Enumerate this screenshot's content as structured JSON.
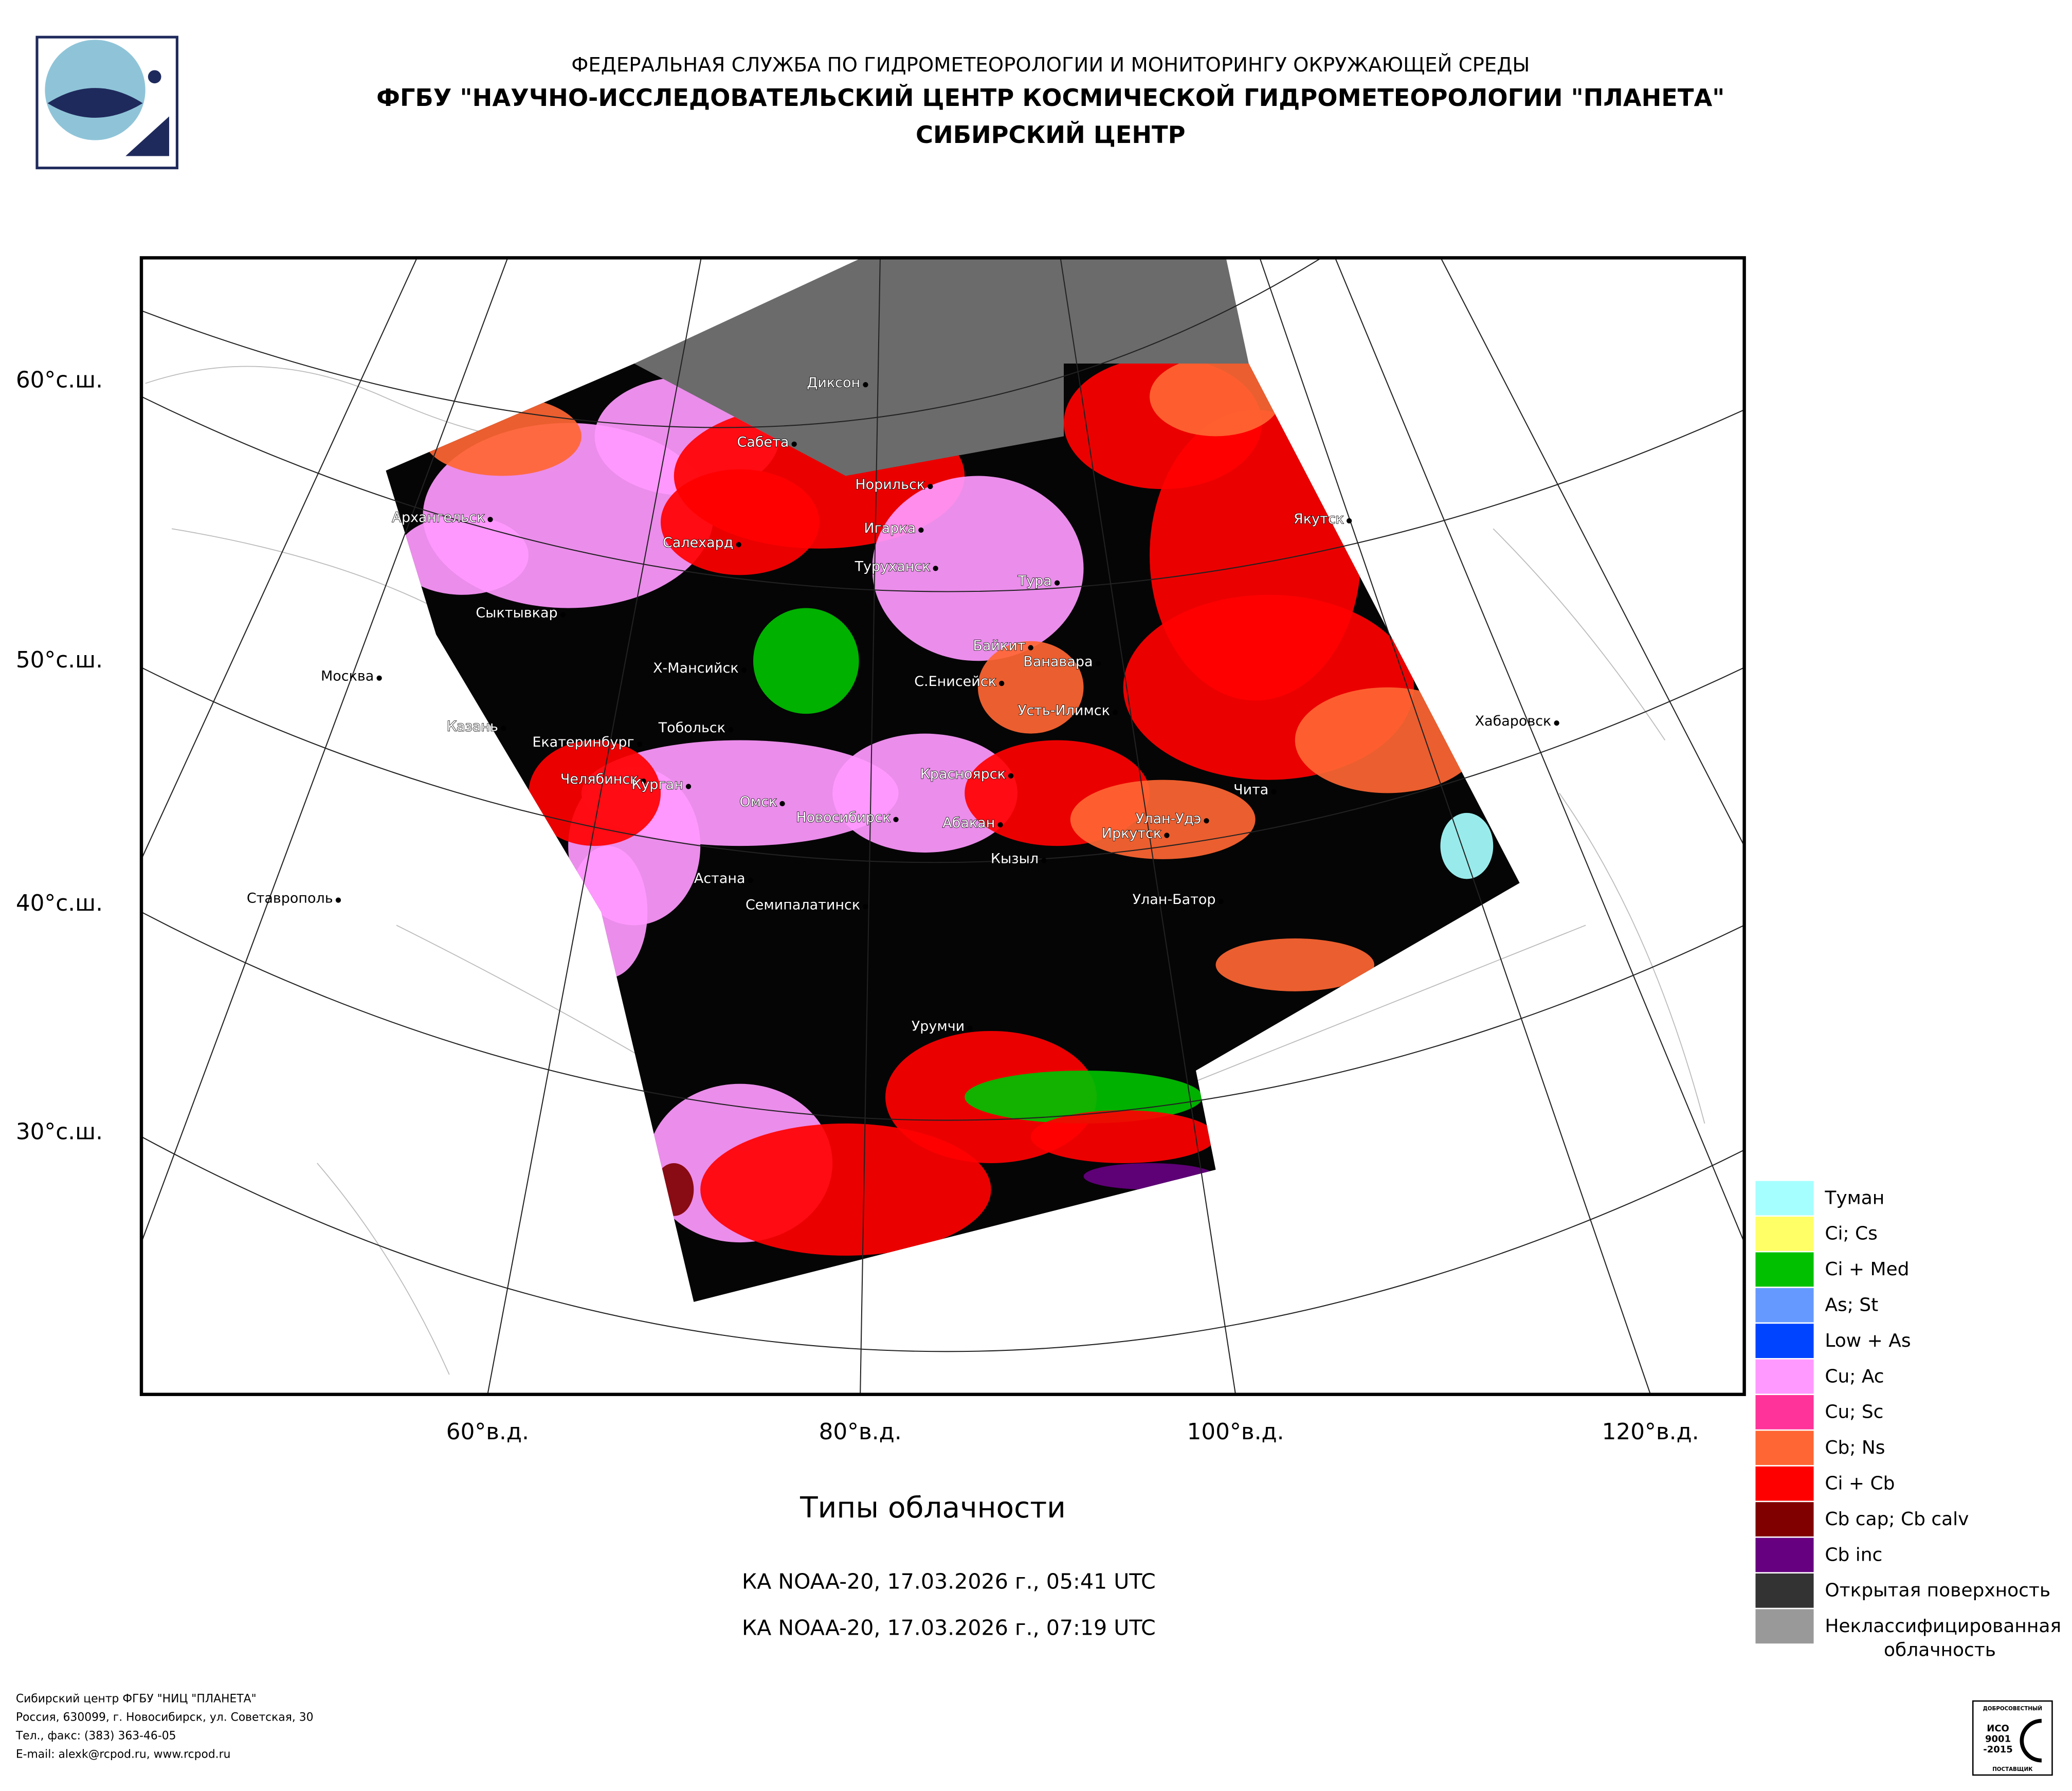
{
  "header": {
    "line1": "ФЕДЕРАЛЬНАЯ СЛУЖБА ПО ГИДРОМЕТЕОРОЛОГИИ И МОНИТОРИНГУ ОКРУЖАЮЩЕЙ СРЕДЫ",
    "line2": "ФГБУ \"НАУЧНО-ИССЛЕДОВАТЕЛЬСКИЙ ЦЕНТР КОСМИЧЕСКОЙ ГИДРОМЕТЕОРОЛОГИИ \"ПЛАНЕТА\"",
    "line3": "СИБИРСКИЙ ЦЕНТР"
  },
  "map": {
    "lat_labels": [
      "60°с.ш.",
      "50°с.ш.",
      "40°с.ш.",
      "30°с.ш."
    ],
    "lon_labels": [
      "60°в.д.",
      "80°в.д.",
      "100°в.д.",
      "120°в.д."
    ],
    "cities": [
      "Диксон",
      "Сабета",
      "Норильск",
      "Игарка",
      "Туруханск",
      "Тура",
      "Якутск",
      "Архангельск",
      "Салехард",
      "Сыктывкар",
      "Байкит",
      "Ванавара",
      "Х-Мансийск",
      "С.Енисейск",
      "Москва",
      "Усть-Илимск",
      "Хабаровск",
      "Казань",
      "Тобольск",
      "Екатеринбург",
      "Красноярск",
      "Челябинск",
      "Курган",
      "Омск",
      "Новосибирск",
      "Абакан",
      "Чита",
      "Улан-Удэ",
      "Иркутск",
      "Кызыл",
      "Астана",
      "Улан-Батор",
      "Ставрополь",
      "Семипалатинск",
      "Урумчи"
    ]
  },
  "legend": [
    {
      "lines": [
        "Туман"
      ],
      "color": "#a6ffff"
    },
    {
      "lines": [
        "Ci; Cs"
      ],
      "color": "#ffff66"
    },
    {
      "lines": [
        "Ci + Med"
      ],
      "color": "#00c000"
    },
    {
      "lines": [
        "As; St"
      ],
      "color": "#6699ff"
    },
    {
      "lines": [
        "Low + As"
      ],
      "color": "#0044ff"
    },
    {
      "lines": [
        "Cu; Ac"
      ],
      "color": "#ff99ff"
    },
    {
      "lines": [
        "Cu; Sc"
      ],
      "color": "#ff3399"
    },
    {
      "lines": [
        "Cb; Ns"
      ],
      "color": "#ff6633"
    },
    {
      "lines": [
        "Ci + Cb"
      ],
      "color": "#ff0000"
    },
    {
      "lines": [
        "Cb cap; Cb calv"
      ],
      "color": "#800000"
    },
    {
      "lines": [
        "Cb inc"
      ],
      "color": "#660080"
    },
    {
      "lines": [
        "Открытая поверхность"
      ],
      "color": "#333333"
    },
    {
      "lines": [
        "Неклассифицированная",
        "облачность"
      ],
      "color": "#999999"
    }
  ],
  "caption": {
    "title": "Типы облачности",
    "passes": [
      "КА NOAA-20, 17.03.2026 г., 05:41 UTC",
      "КА NOAA-20, 17.03.2026 г., 07:19 UTC"
    ]
  },
  "footer": [
    "Сибирский центр ФГБУ \"НИЦ \"ПЛАНЕТА\"",
    "Россия, 630099, г. Новосибирск, ул. Советская, 30",
    "Тел., факс: (383) 363-46-05",
    "E-mail: alexk@rcpod.ru, www.rcpod.ru"
  ],
  "certificate": [
    "ДОБРОСОВЕСТНЫЙ",
    "ИСО",
    "9001",
    "-2015",
    "ПОСТАВЩИК"
  ]
}
